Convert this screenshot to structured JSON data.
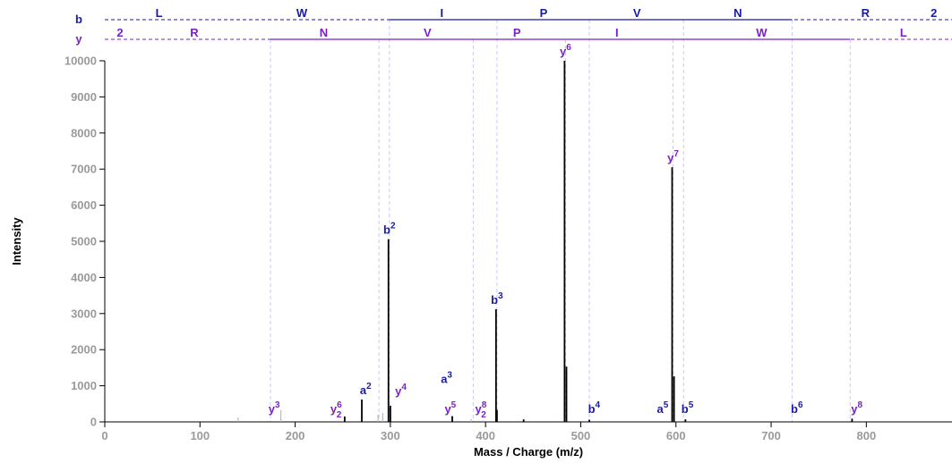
{
  "chart_data": {
    "type": "bar",
    "title": "",
    "xlabel": "Mass / Charge (m/z)",
    "ylabel": "Intensity",
    "xlim": [
      0,
      890
    ],
    "ylim": [
      0,
      10000
    ],
    "xticks": [
      0,
      100,
      200,
      300,
      400,
      500,
      600,
      700,
      800
    ],
    "yticks": [
      0,
      1000,
      2000,
      3000,
      4000,
      5000,
      6000,
      7000,
      8000,
      9000,
      10000
    ],
    "grid": false,
    "colors": {
      "peak": "#000000",
      "minor_peak": "#b0b0b0",
      "b_series": "#1a1aa6",
      "y_series": "#7a1fc9",
      "fragment_line": "#c7c7ff",
      "tick_label": "#9a9a9a"
    },
    "peaks": [
      {
        "mz": 140,
        "intensity": 120,
        "kind": "minor"
      },
      {
        "mz": 185,
        "intensity": 330,
        "kind": "minor"
      },
      {
        "mz": 252,
        "intensity": 150,
        "kind": "peak"
      },
      {
        "mz": 270,
        "intensity": 620,
        "kind": "peak"
      },
      {
        "mz": 287,
        "intensity": 200,
        "kind": "minor"
      },
      {
        "mz": 292,
        "intensity": 250,
        "kind": "minor"
      },
      {
        "mz": 298,
        "intensity": 5060,
        "kind": "peak"
      },
      {
        "mz": 300,
        "intensity": 450,
        "kind": "peak"
      },
      {
        "mz": 365,
        "intensity": 160,
        "kind": "peak"
      },
      {
        "mz": 385,
        "intensity": 80,
        "kind": "minor"
      },
      {
        "mz": 411,
        "intensity": 3120,
        "kind": "peak"
      },
      {
        "mz": 412,
        "intensity": 330,
        "kind": "peak"
      },
      {
        "mz": 440,
        "intensity": 70,
        "kind": "peak"
      },
      {
        "mz": 483,
        "intensity": 10000,
        "kind": "peak"
      },
      {
        "mz": 485,
        "intensity": 1530,
        "kind": "peak"
      },
      {
        "mz": 509,
        "intensity": 60,
        "kind": "peak"
      },
      {
        "mz": 596,
        "intensity": 7050,
        "kind": "peak"
      },
      {
        "mz": 598,
        "intensity": 1260,
        "kind": "peak"
      },
      {
        "mz": 610,
        "intensity": 70,
        "kind": "peak"
      },
      {
        "mz": 785,
        "intensity": 90,
        "kind": "peak"
      }
    ],
    "peak_labels": [
      {
        "ion": "b",
        "num": "2",
        "mz": 299,
        "intensity": 5060,
        "series": "b"
      },
      {
        "ion": "b",
        "num": "3",
        "mz": 412,
        "intensity": 3120,
        "series": "b"
      },
      {
        "ion": "y",
        "num": "6",
        "mz": 484,
        "intensity": 10000,
        "series": "y"
      },
      {
        "ion": "y",
        "num": "7",
        "mz": 597,
        "intensity": 7050,
        "series": "y"
      },
      {
        "ion": "a",
        "num": "2",
        "mz": 274,
        "intensity": 620,
        "series": "b"
      },
      {
        "ion": "y",
        "num": "3",
        "mz": 178,
        "intensity": 100,
        "series": "y"
      },
      {
        "ion": "y",
        "num": "6",
        "charge": "2",
        "mz": 243,
        "intensity": 100,
        "series": "y"
      },
      {
        "ion": "y",
        "num": "4",
        "mz": 311,
        "intensity": 600,
        "series": "y"
      },
      {
        "ion": "a",
        "num": "3",
        "mz": 359,
        "intensity": 930,
        "series": "b"
      },
      {
        "ion": "y",
        "num": "5",
        "mz": 363,
        "intensity": 100,
        "series": "y"
      },
      {
        "ion": "y",
        "num": "8",
        "charge": "2",
        "mz": 395,
        "intensity": 100,
        "series": "y"
      },
      {
        "ion": "b",
        "num": "4",
        "mz": 514,
        "intensity": 100,
        "series": "b"
      },
      {
        "ion": "a",
        "num": "5",
        "mz": 586,
        "intensity": 100,
        "series": "b"
      },
      {
        "ion": "b",
        "num": "5",
        "mz": 612,
        "intensity": 100,
        "series": "b"
      },
      {
        "ion": "b",
        "num": "6",
        "mz": 727,
        "intensity": 100,
        "series": "b"
      },
      {
        "ion": "y",
        "num": "8",
        "mz": 790,
        "intensity": 100,
        "series": "y"
      }
    ],
    "sequence": {
      "b": {
        "label": "b",
        "letters": [
          {
            "text": "L",
            "mz": 57
          },
          {
            "text": "W",
            "mz": 207
          },
          {
            "text": "I",
            "mz": 354
          },
          {
            "text": "P",
            "mz": 461
          },
          {
            "text": "V",
            "mz": 559
          },
          {
            "text": "N",
            "mz": 665
          },
          {
            "text": "R",
            "mz": 799
          },
          {
            "text": "2",
            "mz": 871
          }
        ],
        "fragments": [
          299,
          412,
          509,
          608,
          722
        ]
      },
      "y": {
        "label": "y",
        "letters": [
          {
            "text": "2",
            "mz": 16
          },
          {
            "text": "R",
            "mz": 94
          },
          {
            "text": "N",
            "mz": 230
          },
          {
            "text": "V",
            "mz": 339
          },
          {
            "text": "P",
            "mz": 433
          },
          {
            "text": "I",
            "mz": 538
          },
          {
            "text": "W",
            "mz": 690
          },
          {
            "text": "L",
            "mz": 839
          }
        ],
        "fragments": [
          174,
          288,
          387,
          484,
          597,
          783
        ]
      }
    },
    "ladder": {
      "b_guides": [
        299,
        412,
        509,
        608,
        722
      ],
      "y_guides": [
        174,
        288,
        387,
        484,
        597,
        783
      ]
    }
  }
}
